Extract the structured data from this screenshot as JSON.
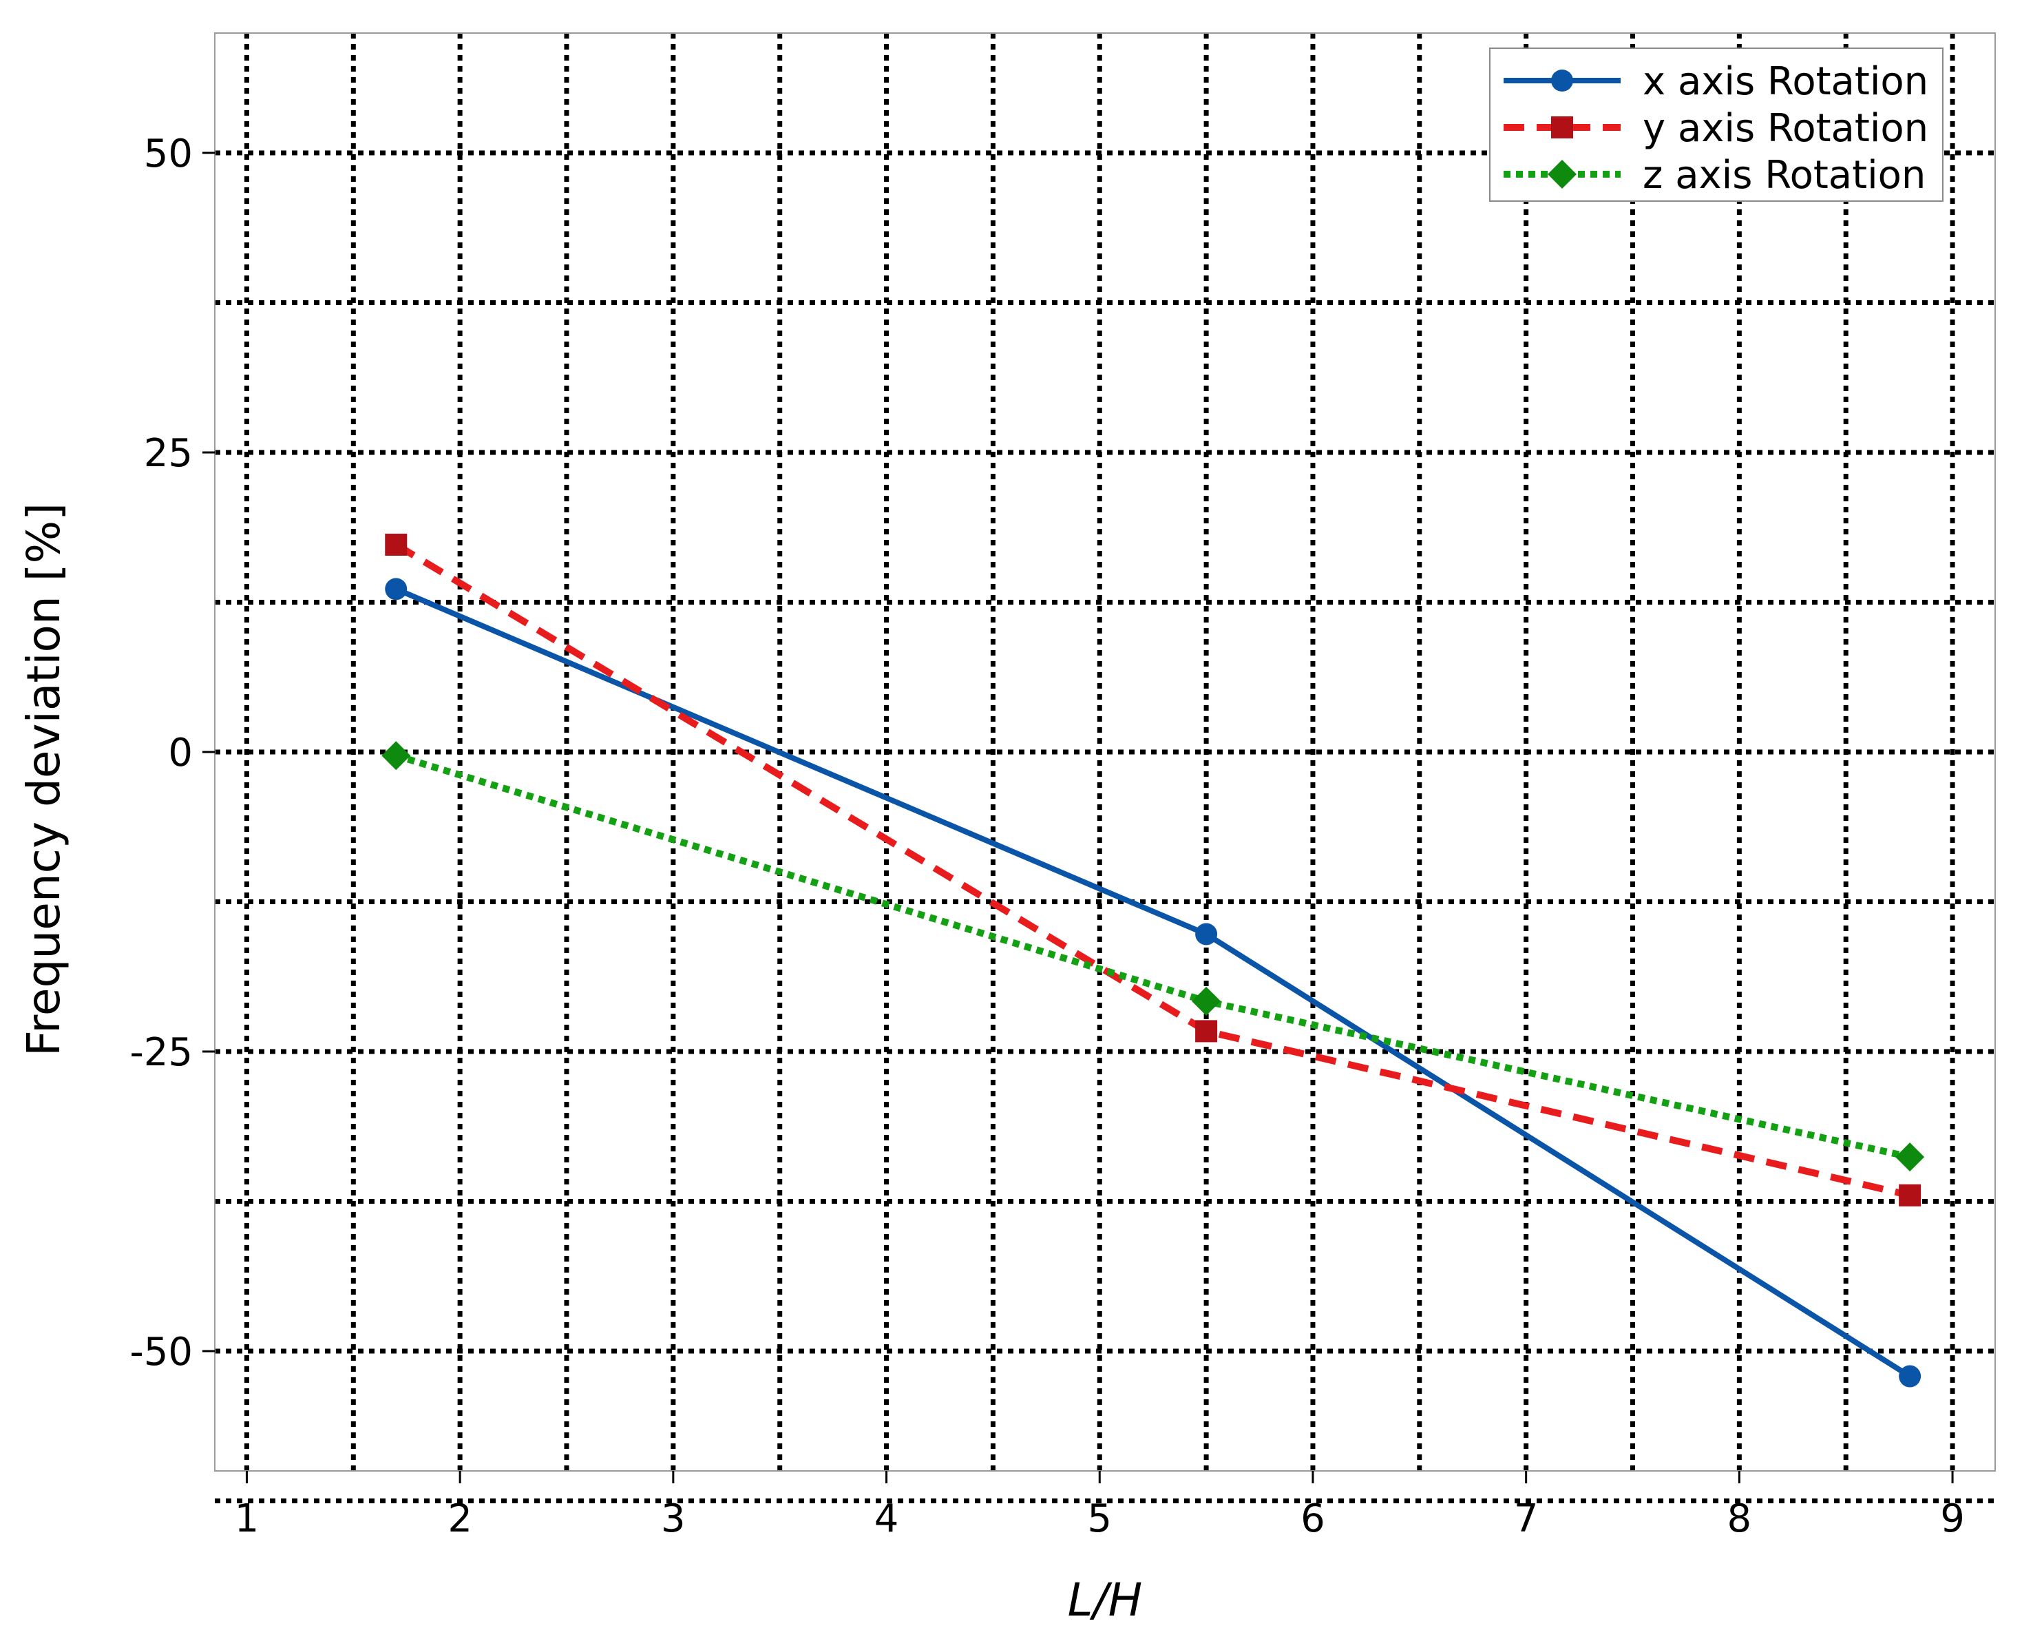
{
  "chart_data": {
    "type": "line",
    "title": "",
    "xlabel": "L/H",
    "ylabel": "Frequency deviation  [%]",
    "xlim": [
      0.85,
      9.2
    ],
    "ylim": [
      -60,
      60
    ],
    "x_ticks": [
      1,
      2,
      3,
      4,
      5,
      6,
      7,
      8,
      9
    ],
    "y_ticks": [
      50,
      25,
      0,
      -25,
      -50
    ],
    "grid": true,
    "legend_position": "top-right",
    "series": [
      {
        "name": "x axis Rotation",
        "color": "#0b55a8",
        "line_style": "solid",
        "marker": "circle",
        "x": [
          1.7,
          5.5,
          8.8
        ],
        "y": [
          13.6,
          -15.2,
          -52.1
        ]
      },
      {
        "name": "y axis Rotation",
        "color": "#e81c1c",
        "marker_color": "#b01016",
        "line_style": "dashed",
        "marker": "square",
        "x": [
          1.7,
          5.5,
          8.8
        ],
        "y": [
          17.3,
          -23.3,
          -37.0
        ]
      },
      {
        "name": "z axis Rotation",
        "color": "#13a013",
        "marker_color": "#0e8a0e",
        "line_style": "dotted",
        "marker": "diamond",
        "x": [
          1.7,
          5.5,
          8.8
        ],
        "y": [
          -0.3,
          -20.8,
          -33.8
        ]
      }
    ]
  }
}
